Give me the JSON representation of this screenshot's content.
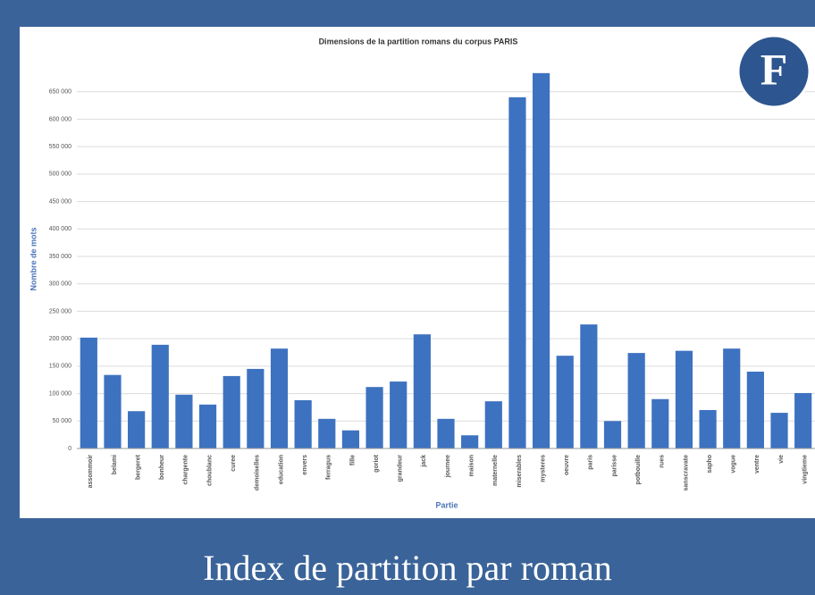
{
  "chart_data": {
    "type": "bar",
    "title": "Dimensions de la partition romans du corpus PARIS",
    "x_label": "Partie",
    "y_label": "Nombre de mots",
    "categories": [
      "assommoir",
      "belami",
      "bergeret",
      "bonheur",
      "chargente",
      "choublanc",
      "curee",
      "demoiselles",
      "education",
      "envers",
      "ferragus",
      "fille",
      "goriot",
      "grandeur",
      "jack",
      "journee",
      "maison",
      "maternelle",
      "miserables",
      "mysteres",
      "oeuvre",
      "paris",
      "parisse",
      "potbouille",
      "rues",
      "sanscravate",
      "sapho",
      "vogue",
      "ventre",
      "vie",
      "vingtieme"
    ],
    "values": [
      202000,
      134000,
      68000,
      189000,
      98000,
      80000,
      132000,
      145000,
      182000,
      88000,
      54000,
      33000,
      112000,
      122000,
      208000,
      54000,
      24000,
      86000,
      640000,
      684000,
      169000,
      226000,
      50000,
      174000,
      90000,
      178000,
      70000,
      182000,
      140000,
      65000,
      101000
    ],
    "color": "#3d72c0",
    "ylim": [
      0,
      700000
    ],
    "yticks": [
      0,
      {
        "value": 50000,
        "label": "50 000"
      },
      {
        "value": 100000,
        "label": "100 000"
      },
      {
        "value": 150000,
        "label": "150 000"
      },
      {
        "value": 200000,
        "label": "200 000"
      },
      {
        "value": 250000,
        "label": "250 000"
      },
      {
        "value": 300000,
        "label": "300 000"
      },
      {
        "value": 350000,
        "label": "350 000"
      },
      {
        "value": 400000,
        "label": "400 000"
      },
      {
        "value": 450000,
        "label": "450 000"
      },
      {
        "value": 500000,
        "label": "500 000"
      },
      {
        "value": 550000,
        "label": "550 000"
      },
      {
        "value": 600000,
        "label": "600 000"
      },
      {
        "value": 650000,
        "label": "650 000"
      }
    ],
    "grid": true
  },
  "badge": "F",
  "caption": "Index de partition par roman"
}
